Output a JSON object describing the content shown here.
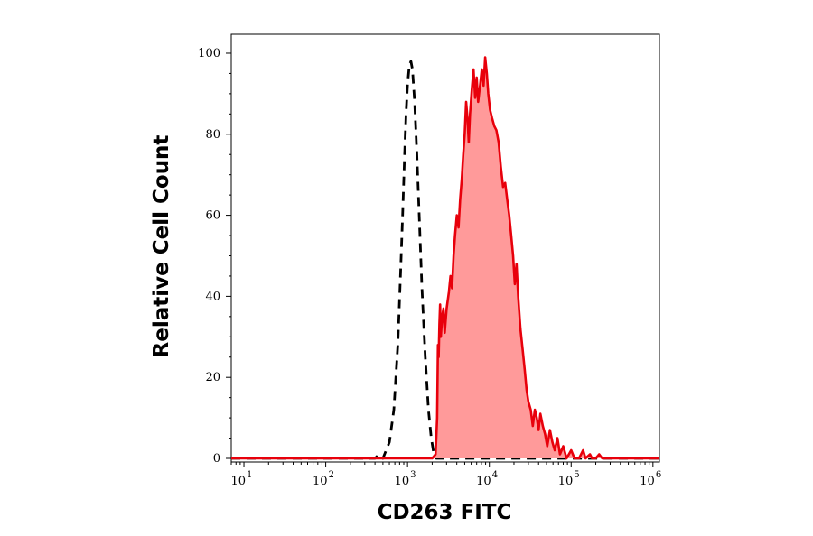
{
  "chart_data": {
    "type": "area",
    "xlabel": "CD263 FITC",
    "ylabel": "Relative Cell Count",
    "x_scale": "log",
    "xlim": [
      7,
      1200000
    ],
    "ylim": [
      0,
      102
    ],
    "y_ticks": [
      0,
      20,
      40,
      60,
      80,
      100
    ],
    "x_ticks": [
      {
        "value": 10,
        "base": "10",
        "exp": "1"
      },
      {
        "value": 100,
        "base": "10",
        "exp": "2"
      },
      {
        "value": 1000,
        "base": "10",
        "exp": "3"
      },
      {
        "value": 10000,
        "base": "10",
        "exp": "4"
      },
      {
        "value": 100000,
        "base": "10",
        "exp": "5"
      },
      {
        "value": 1000000,
        "base": "10",
        "exp": "6"
      }
    ],
    "grid": false,
    "series": [
      {
        "style": "dashed-outline",
        "color": "#000000",
        "points": [
          [
            7,
            0
          ],
          [
            400,
            0
          ],
          [
            450,
            1
          ],
          [
            500,
            0
          ],
          [
            600,
            4
          ],
          [
            680,
            12
          ],
          [
            760,
            28
          ],
          [
            820,
            45
          ],
          [
            870,
            60
          ],
          [
            920,
            75
          ],
          [
            960,
            85
          ],
          [
            1000,
            92
          ],
          [
            1050,
            97
          ],
          [
            1100,
            98
          ],
          [
            1150,
            96
          ],
          [
            1220,
            88
          ],
          [
            1300,
            75
          ],
          [
            1400,
            58
          ],
          [
            1500,
            42
          ],
          [
            1650,
            25
          ],
          [
            1800,
            12
          ],
          [
            1950,
            5
          ],
          [
            2100,
            1
          ],
          [
            2250,
            0
          ],
          [
            1200000,
            0
          ]
        ]
      },
      {
        "style": "filled",
        "color": "#e8000b",
        "fill": "#ff9a9a",
        "points": [
          [
            7,
            0
          ],
          [
            2000,
            0
          ],
          [
            2200,
            1
          ],
          [
            2300,
            10
          ],
          [
            2350,
            28
          ],
          [
            2400,
            25
          ],
          [
            2450,
            33
          ],
          [
            2500,
            38
          ],
          [
            2550,
            30
          ],
          [
            2650,
            35
          ],
          [
            2750,
            37
          ],
          [
            2850,
            31
          ],
          [
            3000,
            37
          ],
          [
            3200,
            41
          ],
          [
            3350,
            45
          ],
          [
            3500,
            42
          ],
          [
            3650,
            50
          ],
          [
            3800,
            55
          ],
          [
            4000,
            60
          ],
          [
            4200,
            57
          ],
          [
            4400,
            64
          ],
          [
            4600,
            69
          ],
          [
            4800,
            75
          ],
          [
            5000,
            80
          ],
          [
            5200,
            88
          ],
          [
            5400,
            84
          ],
          [
            5600,
            78
          ],
          [
            5800,
            85
          ],
          [
            6100,
            91
          ],
          [
            6400,
            96
          ],
          [
            6700,
            89
          ],
          [
            7000,
            94
          ],
          [
            7300,
            88
          ],
          [
            7700,
            92
          ],
          [
            8100,
            96
          ],
          [
            8500,
            92
          ],
          [
            8900,
            99
          ],
          [
            9300,
            95
          ],
          [
            9700,
            90
          ],
          [
            10200,
            86
          ],
          [
            10800,
            84
          ],
          [
            11500,
            82
          ],
          [
            12200,
            81
          ],
          [
            13000,
            78
          ],
          [
            13800,
            72
          ],
          [
            14700,
            67
          ],
          [
            15600,
            68
          ],
          [
            16500,
            64
          ],
          [
            17500,
            60
          ],
          [
            18500,
            55
          ],
          [
            19500,
            50
          ],
          [
            20500,
            43
          ],
          [
            21500,
            48
          ],
          [
            22500,
            40
          ],
          [
            24000,
            32
          ],
          [
            25500,
            27
          ],
          [
            27000,
            22
          ],
          [
            28500,
            17
          ],
          [
            30000,
            14
          ],
          [
            32000,
            12
          ],
          [
            34000,
            8
          ],
          [
            36000,
            12
          ],
          [
            38000,
            10
          ],
          [
            40000,
            7
          ],
          [
            42000,
            11
          ],
          [
            45000,
            8
          ],
          [
            48000,
            6
          ],
          [
            51000,
            3
          ],
          [
            55000,
            7
          ],
          [
            59000,
            4
          ],
          [
            63000,
            2
          ],
          [
            68000,
            5
          ],
          [
            73000,
            1
          ],
          [
            80000,
            3
          ],
          [
            88000,
            0
          ],
          [
            100000,
            2
          ],
          [
            110000,
            0
          ],
          [
            125000,
            0
          ],
          [
            140000,
            2
          ],
          [
            150000,
            0
          ],
          [
            170000,
            1
          ],
          [
            180000,
            0
          ],
          [
            200000,
            0
          ],
          [
            220000,
            1
          ],
          [
            240000,
            0
          ],
          [
            1200000,
            0
          ]
        ]
      }
    ]
  }
}
